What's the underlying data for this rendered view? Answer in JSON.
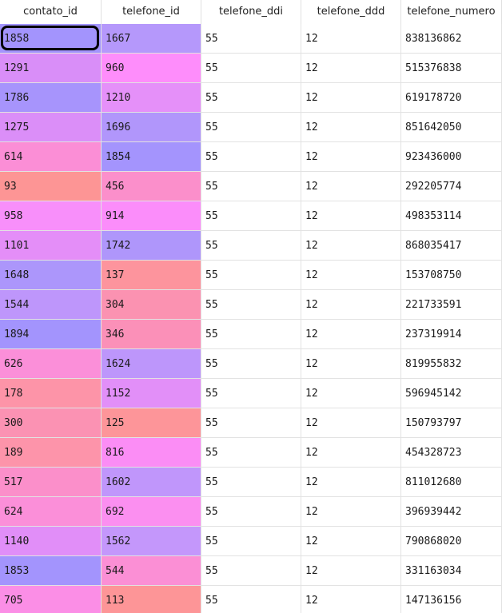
{
  "table": {
    "columns": [
      "contato_id",
      "telefone_id",
      "telefone_ddi",
      "telefone_ddd",
      "telefone_numero"
    ],
    "rows": [
      {
        "cells": [
          "1858",
          "1667",
          "55",
          "12",
          "838136862"
        ],
        "colors": [
          "#a394fd",
          "#b598fb"
        ]
      },
      {
        "cells": [
          "1291",
          "960",
          "55",
          "12",
          "515376838"
        ],
        "colors": [
          "#d98ef8",
          "#fe8dfb"
        ]
      },
      {
        "cells": [
          "1786",
          "1210",
          "55",
          "12",
          "619178720"
        ],
        "colors": [
          "#a794fc",
          "#e590f9"
        ]
      },
      {
        "cells": [
          "1275",
          "1696",
          "55",
          "12",
          "851642050"
        ],
        "colors": [
          "#db8ef8",
          "#b196fb"
        ]
      },
      {
        "cells": [
          "614",
          "1854",
          "55",
          "12",
          "923436000"
        ],
        "colors": [
          "#fb8ed6",
          "#a494fd"
        ]
      },
      {
        "cells": [
          "93",
          "456",
          "55",
          "12",
          "292205774"
        ],
        "colors": [
          "#fd9595",
          "#fb8fcb"
        ]
      },
      {
        "cells": [
          "958",
          "914",
          "55",
          "12",
          "498353114"
        ],
        "colors": [
          "#f88ffa",
          "#fb8dfa"
        ]
      },
      {
        "cells": [
          "1101",
          "1742",
          "55",
          "12",
          "868035417"
        ],
        "colors": [
          "#e48ef8",
          "#af96fb"
        ]
      },
      {
        "cells": [
          "1648",
          "137",
          "55",
          "12",
          "153708750"
        ],
        "colors": [
          "#ac96fb",
          "#fd949d"
        ]
      },
      {
        "cells": [
          "1544",
          "304",
          "55",
          "12",
          "221733591"
        ],
        "colors": [
          "#be96fb",
          "#fb92b1"
        ]
      },
      {
        "cells": [
          "1894",
          "346",
          "55",
          "12",
          "237319914"
        ],
        "colors": [
          "#a394fd",
          "#fb90b8"
        ]
      },
      {
        "cells": [
          "626",
          "1624",
          "55",
          "12",
          "819955832"
        ],
        "colors": [
          "#fb8fd9",
          "#bd96fb"
        ]
      },
      {
        "cells": [
          "178",
          "1152",
          "55",
          "12",
          "596945142"
        ],
        "colors": [
          "#fd94a8",
          "#e28ff8"
        ]
      },
      {
        "cells": [
          "300",
          "125",
          "55",
          "12",
          "150793797"
        ],
        "colors": [
          "#fb92b3",
          "#fd9599"
        ]
      },
      {
        "cells": [
          "189",
          "816",
          "55",
          "12",
          "454328723"
        ],
        "colors": [
          "#fd94aa",
          "#fb8df5"
        ]
      },
      {
        "cells": [
          "517",
          "1602",
          "55",
          "12",
          "811012680"
        ],
        "colors": [
          "#fb8fca",
          "#c096fb"
        ]
      },
      {
        "cells": [
          "624",
          "692",
          "55",
          "12",
          "396939442"
        ],
        "colors": [
          "#fb8fd9",
          "#fb8ff0"
        ]
      },
      {
        "cells": [
          "1140",
          "1562",
          "55",
          "12",
          "790868020"
        ],
        "colors": [
          "#e18ef8",
          "#c497fb"
        ]
      },
      {
        "cells": [
          "1853",
          "544",
          "55",
          "12",
          "331163034"
        ],
        "colors": [
          "#a394fd",
          "#fb8fd5"
        ]
      },
      {
        "cells": [
          "705",
          "113",
          "55",
          "12",
          "147136156"
        ],
        "colors": [
          "#fb8ee6",
          "#fd9597"
        ]
      }
    ]
  },
  "selection": {
    "row": 0,
    "column": 0
  }
}
